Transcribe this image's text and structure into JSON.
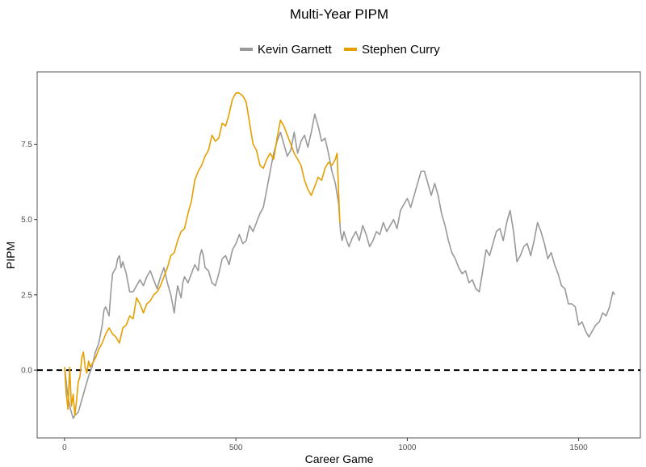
{
  "chart_data": {
    "type": "line",
    "title": "Multi-Year PIPM",
    "xlabel": "Career Game",
    "ylabel": "PIPM",
    "xlim": [
      -80,
      1680
    ],
    "ylim": [
      -2.25,
      9.9
    ],
    "x_ticks": [
      0,
      500,
      1000,
      1500
    ],
    "x_tick_labels": [
      "0",
      "500",
      "1000",
      "1500"
    ],
    "y_ticks": [
      0,
      2.5,
      5,
      7.5
    ],
    "y_tick_labels": [
      "0.0",
      "2.5",
      "5.0",
      "7.5"
    ],
    "reference_line": {
      "y": 0,
      "style": "dashed",
      "color": "#000000"
    },
    "legend_position": "top",
    "grid": false,
    "series": [
      {
        "name": "Kevin Garnett",
        "color": "#999999",
        "points": [
          [
            0,
            0.1
          ],
          [
            8,
            -0.7
          ],
          [
            15,
            -1.2
          ],
          [
            20,
            -1.4
          ],
          [
            25,
            -1.6
          ],
          [
            30,
            -1.5
          ],
          [
            40,
            -1.4
          ],
          [
            50,
            -1.0
          ],
          [
            60,
            -0.6
          ],
          [
            70,
            -0.2
          ],
          [
            80,
            0.1
          ],
          [
            90,
            0.6
          ],
          [
            100,
            0.9
          ],
          [
            110,
            1.5
          ],
          [
            115,
            2.0
          ],
          [
            120,
            2.1
          ],
          [
            130,
            1.8
          ],
          [
            135,
            2.6
          ],
          [
            140,
            3.2
          ],
          [
            150,
            3.4
          ],
          [
            155,
            3.7
          ],
          [
            160,
            3.8
          ],
          [
            165,
            3.4
          ],
          [
            170,
            3.6
          ],
          [
            180,
            3.2
          ],
          [
            185,
            2.9
          ],
          [
            190,
            2.6
          ],
          [
            200,
            2.6
          ],
          [
            210,
            2.8
          ],
          [
            220,
            3.0
          ],
          [
            230,
            2.8
          ],
          [
            240,
            3.1
          ],
          [
            250,
            3.3
          ],
          [
            260,
            3.0
          ],
          [
            270,
            2.7
          ],
          [
            280,
            3.1
          ],
          [
            290,
            3.4
          ],
          [
            300,
            2.9
          ],
          [
            310,
            2.5
          ],
          [
            315,
            2.2
          ],
          [
            320,
            1.9
          ],
          [
            325,
            2.4
          ],
          [
            330,
            2.8
          ],
          [
            340,
            2.4
          ],
          [
            345,
            2.9
          ],
          [
            350,
            3.1
          ],
          [
            360,
            2.9
          ],
          [
            370,
            3.2
          ],
          [
            380,
            3.5
          ],
          [
            390,
            3.3
          ],
          [
            395,
            3.8
          ],
          [
            400,
            4.0
          ],
          [
            405,
            3.8
          ],
          [
            410,
            3.4
          ],
          [
            420,
            3.3
          ],
          [
            430,
            2.9
          ],
          [
            440,
            2.8
          ],
          [
            450,
            3.2
          ],
          [
            460,
            3.7
          ],
          [
            470,
            3.8
          ],
          [
            480,
            3.5
          ],
          [
            490,
            4.0
          ],
          [
            500,
            4.2
          ],
          [
            510,
            4.5
          ],
          [
            520,
            4.2
          ],
          [
            530,
            4.3
          ],
          [
            540,
            4.8
          ],
          [
            550,
            4.6
          ],
          [
            560,
            4.9
          ],
          [
            570,
            5.2
          ],
          [
            580,
            5.4
          ],
          [
            590,
            6.0
          ],
          [
            600,
            6.6
          ],
          [
            610,
            7.2
          ],
          [
            620,
            7.6
          ],
          [
            630,
            7.9
          ],
          [
            640,
            7.5
          ],
          [
            650,
            7.1
          ],
          [
            660,
            7.3
          ],
          [
            670,
            7.9
          ],
          [
            680,
            7.2
          ],
          [
            690,
            7.6
          ],
          [
            700,
            7.8
          ],
          [
            710,
            7.4
          ],
          [
            720,
            7.9
          ],
          [
            730,
            8.5
          ],
          [
            740,
            8.1
          ],
          [
            750,
            7.6
          ],
          [
            760,
            7.7
          ],
          [
            770,
            7.2
          ],
          [
            780,
            6.6
          ],
          [
            790,
            6.2
          ],
          [
            800,
            5.5
          ],
          [
            805,
            4.6
          ],
          [
            810,
            4.3
          ],
          [
            815,
            4.6
          ],
          [
            820,
            4.4
          ],
          [
            830,
            4.1
          ],
          [
            840,
            4.4
          ],
          [
            850,
            4.6
          ],
          [
            860,
            4.3
          ],
          [
            870,
            4.8
          ],
          [
            880,
            4.5
          ],
          [
            890,
            4.1
          ],
          [
            900,
            4.3
          ],
          [
            910,
            4.6
          ],
          [
            920,
            4.5
          ],
          [
            930,
            4.9
          ],
          [
            940,
            4.6
          ],
          [
            950,
            4.8
          ],
          [
            960,
            5.0
          ],
          [
            970,
            4.7
          ],
          [
            980,
            5.3
          ],
          [
            990,
            5.5
          ],
          [
            1000,
            5.7
          ],
          [
            1010,
            5.4
          ],
          [
            1020,
            5.8
          ],
          [
            1030,
            6.2
          ],
          [
            1040,
            6.6
          ],
          [
            1050,
            6.6
          ],
          [
            1060,
            6.2
          ],
          [
            1070,
            5.8
          ],
          [
            1080,
            6.2
          ],
          [
            1090,
            5.8
          ],
          [
            1100,
            5.2
          ],
          [
            1110,
            4.8
          ],
          [
            1120,
            4.3
          ],
          [
            1130,
            3.9
          ],
          [
            1140,
            3.7
          ],
          [
            1150,
            3.4
          ],
          [
            1160,
            3.2
          ],
          [
            1170,
            3.3
          ],
          [
            1180,
            2.9
          ],
          [
            1190,
            3.0
          ],
          [
            1200,
            2.7
          ],
          [
            1210,
            2.6
          ],
          [
            1220,
            3.3
          ],
          [
            1230,
            4.0
          ],
          [
            1240,
            3.8
          ],
          [
            1250,
            4.2
          ],
          [
            1260,
            4.6
          ],
          [
            1270,
            4.7
          ],
          [
            1280,
            4.3
          ],
          [
            1290,
            4.9
          ],
          [
            1300,
            5.3
          ],
          [
            1310,
            4.6
          ],
          [
            1320,
            3.6
          ],
          [
            1330,
            3.8
          ],
          [
            1340,
            4.1
          ],
          [
            1350,
            4.2
          ],
          [
            1360,
            3.8
          ],
          [
            1370,
            4.3
          ],
          [
            1380,
            4.9
          ],
          [
            1390,
            4.6
          ],
          [
            1400,
            4.2
          ],
          [
            1410,
            3.7
          ],
          [
            1420,
            3.9
          ],
          [
            1430,
            3.5
          ],
          [
            1440,
            3.2
          ],
          [
            1450,
            2.8
          ],
          [
            1460,
            2.7
          ],
          [
            1470,
            2.2
          ],
          [
            1480,
            2.2
          ],
          [
            1490,
            2.1
          ],
          [
            1500,
            1.5
          ],
          [
            1510,
            1.6
          ],
          [
            1520,
            1.3
          ],
          [
            1530,
            1.1
          ],
          [
            1540,
            1.3
          ],
          [
            1550,
            1.5
          ],
          [
            1560,
            1.6
          ],
          [
            1570,
            1.9
          ],
          [
            1580,
            1.8
          ],
          [
            1590,
            2.1
          ],
          [
            1600,
            2.6
          ],
          [
            1605,
            2.5
          ]
        ]
      },
      {
        "name": "Stephen Curry",
        "color": "#E69F00",
        "points": [
          [
            0,
            0.1
          ],
          [
            5,
            -0.8
          ],
          [
            10,
            -1.3
          ],
          [
            15,
            0.1
          ],
          [
            20,
            -1.2
          ],
          [
            25,
            -0.8
          ],
          [
            30,
            -1.5
          ],
          [
            35,
            -1.0
          ],
          [
            40,
            -0.4
          ],
          [
            45,
            -0.2
          ],
          [
            50,
            0.4
          ],
          [
            55,
            0.6
          ],
          [
            60,
            0.1
          ],
          [
            65,
            -0.1
          ],
          [
            70,
            0.3
          ],
          [
            75,
            0.1
          ],
          [
            80,
            0.2
          ],
          [
            90,
            0.4
          ],
          [
            100,
            0.7
          ],
          [
            110,
            0.9
          ],
          [
            120,
            1.2
          ],
          [
            130,
            1.4
          ],
          [
            140,
            1.2
          ],
          [
            150,
            1.1
          ],
          [
            160,
            0.9
          ],
          [
            170,
            1.4
          ],
          [
            180,
            1.5
          ],
          [
            190,
            1.8
          ],
          [
            200,
            1.7
          ],
          [
            210,
            2.4
          ],
          [
            220,
            2.2
          ],
          [
            230,
            1.9
          ],
          [
            240,
            2.2
          ],
          [
            250,
            2.3
          ],
          [
            260,
            2.5
          ],
          [
            270,
            2.6
          ],
          [
            280,
            2.8
          ],
          [
            290,
            3.1
          ],
          [
            300,
            3.4
          ],
          [
            310,
            3.8
          ],
          [
            320,
            3.9
          ],
          [
            330,
            4.3
          ],
          [
            340,
            4.6
          ],
          [
            350,
            4.7
          ],
          [
            360,
            5.2
          ],
          [
            370,
            5.6
          ],
          [
            380,
            6.3
          ],
          [
            390,
            6.6
          ],
          [
            400,
            6.8
          ],
          [
            410,
            7.1
          ],
          [
            420,
            7.3
          ],
          [
            430,
            7.8
          ],
          [
            440,
            7.6
          ],
          [
            450,
            7.7
          ],
          [
            460,
            8.2
          ],
          [
            470,
            8.1
          ],
          [
            480,
            8.5
          ],
          [
            490,
            9.0
          ],
          [
            500,
            9.2
          ],
          [
            510,
            9.2
          ],
          [
            520,
            9.1
          ],
          [
            530,
            8.9
          ],
          [
            540,
            8.2
          ],
          [
            550,
            7.5
          ],
          [
            560,
            7.3
          ],
          [
            570,
            6.8
          ],
          [
            580,
            6.7
          ],
          [
            590,
            7.0
          ],
          [
            600,
            7.2
          ],
          [
            610,
            7.0
          ],
          [
            620,
            7.7
          ],
          [
            630,
            8.3
          ],
          [
            640,
            8.1
          ],
          [
            650,
            7.8
          ],
          [
            660,
            7.5
          ],
          [
            670,
            7.2
          ],
          [
            680,
            7.0
          ],
          [
            690,
            6.8
          ],
          [
            700,
            6.3
          ],
          [
            710,
            6.0
          ],
          [
            720,
            5.8
          ],
          [
            730,
            6.1
          ],
          [
            740,
            6.4
          ],
          [
            750,
            6.3
          ],
          [
            760,
            6.7
          ],
          [
            770,
            6.9
          ],
          [
            780,
            6.8
          ],
          [
            790,
            7.0
          ],
          [
            795,
            7.2
          ],
          [
            800,
            5.8
          ],
          [
            803,
            4.9
          ]
        ]
      }
    ]
  }
}
